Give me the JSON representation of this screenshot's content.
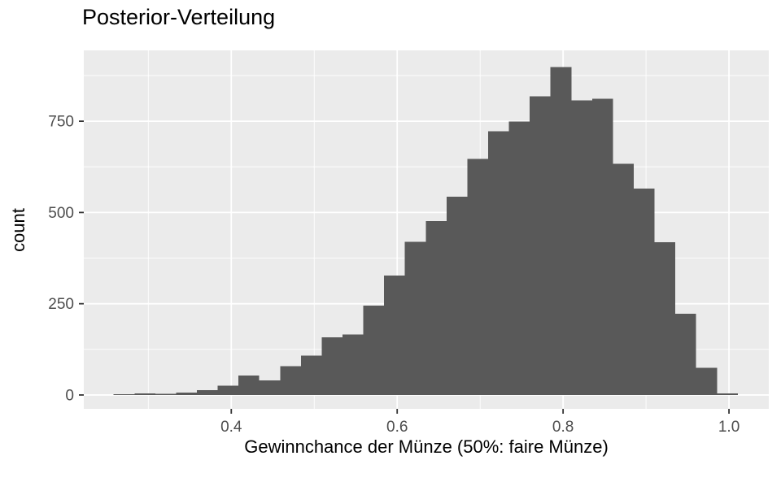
{
  "page": {
    "background": "#FFFFFF"
  },
  "chart_data": {
    "type": "bar",
    "subtype": "histogram",
    "title": "Posterior-Verteilung",
    "xlabel": "Gewinnchance der Münze (50%: faire Münze)",
    "ylabel": "count",
    "bin_start": 0.2582,
    "bin_width": 0.02508,
    "counts": [
      2,
      4,
      3,
      7,
      13,
      26,
      53,
      40,
      79,
      108,
      158,
      166,
      245,
      327,
      420,
      476,
      543,
      647,
      722,
      749,
      818,
      898,
      807,
      812,
      633,
      565,
      418,
      223,
      74,
      4
    ],
    "x_ticks": [
      0.4,
      0.6,
      0.8,
      1.0
    ],
    "x_tick_labels": [
      "0.4",
      "0.6",
      "0.8",
      "1.0"
    ],
    "y_ticks": [
      0,
      250,
      500,
      750
    ],
    "y_tick_labels": [
      "0",
      "250",
      "500",
      "750"
    ],
    "x_minor_ticks": [
      0.3,
      0.5,
      0.7,
      0.9
    ],
    "y_minor_ticks": [
      125,
      375,
      625,
      875
    ],
    "xlim": [
      0.2222,
      1.048
    ],
    "ylim": [
      -38,
      944
    ],
    "grid": "on",
    "legend": "none",
    "colors": {
      "bar": "#595959",
      "panel": "#EBEBEB",
      "grid": "#FFFFFF",
      "tick": "#333333",
      "tick_label": "#4D4D4D",
      "title": "#000000"
    }
  }
}
